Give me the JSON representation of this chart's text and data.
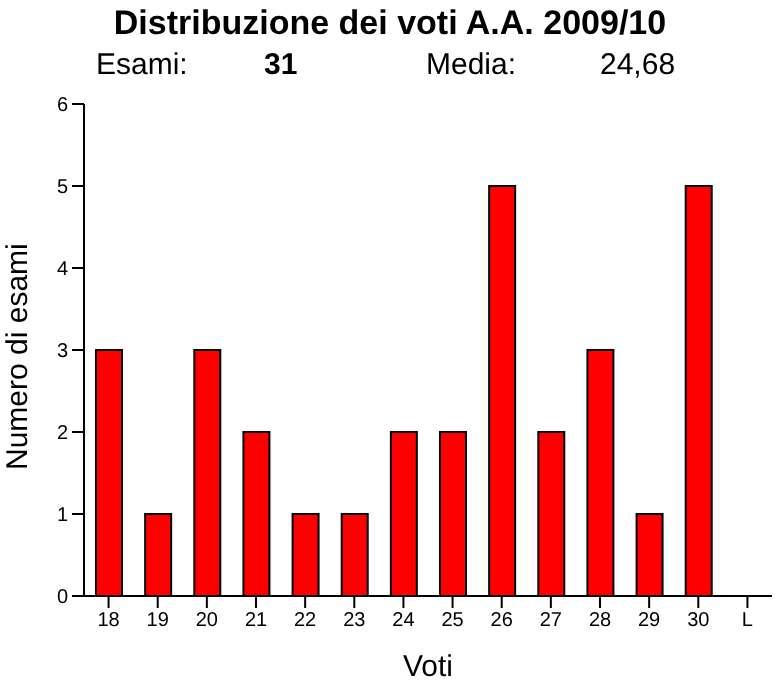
{
  "chart_data": {
    "type": "bar",
    "title": "Distribuzione dei voti A.A. 2009/10",
    "annotations": [
      "Esami:",
      "31",
      "Media:",
      "24,68"
    ],
    "xlabel": "Voti",
    "ylabel": "Numero di esami",
    "categories": [
      "18",
      "19",
      "20",
      "21",
      "22",
      "23",
      "24",
      "25",
      "26",
      "27",
      "28",
      "29",
      "30",
      "L"
    ],
    "values": [
      3,
      1,
      3,
      2,
      1,
      1,
      2,
      2,
      5,
      2,
      3,
      1,
      5,
      null
    ],
    "color": "#ff0000",
    "ylim": [
      0,
      6
    ],
    "yticks": [
      0,
      1,
      2,
      3,
      4,
      5,
      6
    ],
    "grid": false,
    "legend": false
  }
}
